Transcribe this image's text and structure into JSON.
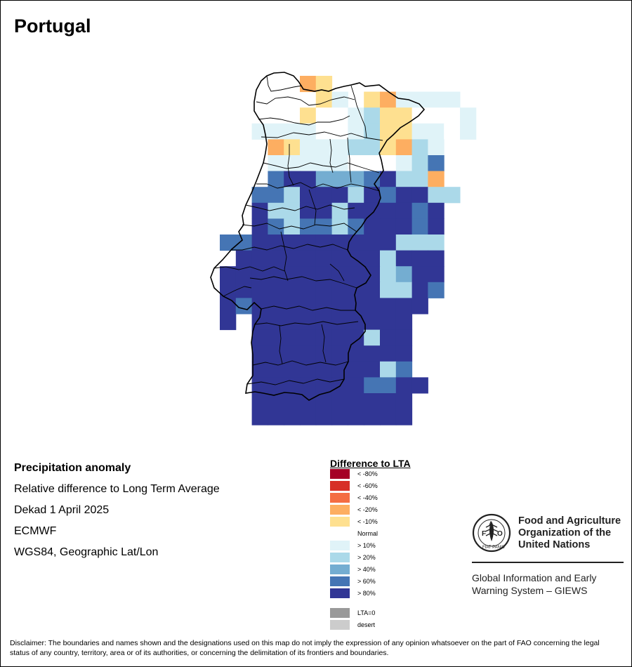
{
  "title": "Portugal",
  "info": {
    "heading": "Precipitation anomaly",
    "line1": "Relative difference to Long Term Average",
    "line2": "Dekad 1 April 2025",
    "line3": "ECMWF",
    "line4": "WGS84, Geographic Lat/Lon"
  },
  "legend": {
    "title": "Difference to LTA",
    "items": [
      {
        "label": "< -80%",
        "color": "#a50026"
      },
      {
        "label": "< -60%",
        "color": "#d73027"
      },
      {
        "label": "< -40%",
        "color": "#f46d43"
      },
      {
        "label": "< -20%",
        "color": "#fdae61"
      },
      {
        "label": "< -10%",
        "color": "#fee090"
      },
      {
        "label": "Normal",
        "color": "#ffffff"
      },
      {
        "label": "> 10%",
        "color": "#e0f3f8"
      },
      {
        "label": "> 20%",
        "color": "#abd9e9"
      },
      {
        "label": "> 40%",
        "color": "#74add1"
      },
      {
        "label": "> 60%",
        "color": "#4575b4"
      },
      {
        "label": "> 80%",
        "color": "#313695"
      }
    ],
    "extra": [
      {
        "label": "LTA=0",
        "color": "#999999"
      },
      {
        "label": "desert",
        "color": "#cccccc"
      }
    ]
  },
  "fao": {
    "org_line1": "Food and Agriculture",
    "org_line2": "Organization of the",
    "org_line3": "United Nations",
    "system_line1": "Global Information and Early",
    "system_line2": "Warning System – GIEWS",
    "emblem_text": "FIAT PANIS",
    "emblem_letters": "FAO"
  },
  "disclaimer": "Disclaimer: The boundaries and names shown and the designations used on this map do not imply the expression of any opinion whatsoever on the part of FAO concerning the legal status of any country, territory, area or of its authorities, or concerning the delimitation of its frontiers and boundaries.",
  "map_grid": {
    "legend_codes": {
      "O": "< -20%",
      "Y": "< -10%",
      "W": "Normal",
      "L": "> 10%",
      "S": "> 20%",
      "M": "> 40%",
      "B": "> 60%",
      "D": "> 80%"
    },
    "rows": [
      ".....OY........",
      "......YL.YOLLLL",
      ".....YWWLSYYWWWL",
      "..LLLLWWLSYYLLWL",
      "...OYLLLSSYOSL",
      "...LLLLLWWWLSB",
      "...BDDMMMBDSSO",
      "..BBSDDDSDBDDSS",
      "..DSSDDSDDDDBD",
      "..DBSBBSBDDDBD",
      "BBDDDDDDDDDSSS",
      ".DDDDDDDDDSDDD",
      "DDDDDDDDDDSMDD",
      "DDDDDDDDDDSSDB",
      "DBDDDDDDDDDDD",
      "D.DDDDDDDDDD",
      "..DDDDDDDSDD",
      "..DDDDDDDDDD",
      "..DDDDDDDDSB",
      "..DDDDDDDBBDD",
      "..DDDDDDDDDD",
      "..DDDDDDDDDD"
    ]
  }
}
